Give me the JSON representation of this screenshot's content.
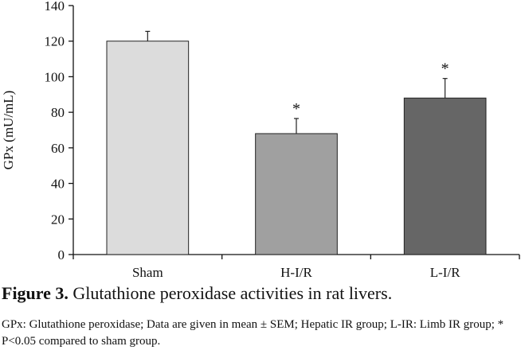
{
  "chart_data": {
    "type": "bar",
    "title": "",
    "xlabel": "",
    "ylabel": "GPx (mU/mL)",
    "ylim": [
      0,
      140
    ],
    "yticks": [
      0,
      20,
      40,
      60,
      80,
      100,
      120,
      140
    ],
    "categories": [
      "Sham",
      "H-I/R",
      "L-I/R"
    ],
    "values": [
      120,
      68,
      88
    ],
    "errors": [
      5.5,
      8.5,
      11
    ],
    "significance": [
      "",
      "*",
      "*"
    ],
    "bar_colors": [
      "#dcdcdc",
      "#a0a0a0",
      "#666666"
    ],
    "grid": false,
    "legend": "none"
  },
  "caption": {
    "label": "Figure 3.",
    "text": " Glutathione peroxidase activities in rat livers."
  },
  "note": "GPx: Glutathione peroxidase; Data are given in mean ± SEM; Hepatic IR group; L-IR: Limb IR group; * P<0.05 compared to sham group."
}
